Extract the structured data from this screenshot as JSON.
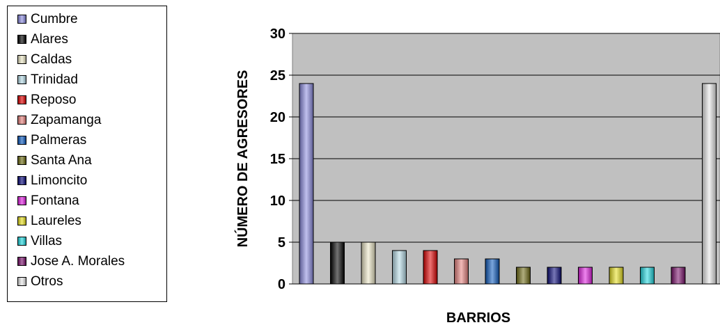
{
  "chart_data": {
    "type": "bar",
    "categories": [
      "Cumbre",
      "Alares",
      "Caldas",
      "Trinidad",
      "Reposo",
      "Zapamanga",
      "Palmeras",
      "Santa Ana",
      "Limoncito",
      "Fontana",
      "Laureles",
      "Villas",
      "Jose A. Morales",
      "Otros"
    ],
    "values": [
      24,
      5,
      5,
      4,
      4,
      3,
      3,
      2,
      2,
      2,
      2,
      2,
      2,
      24
    ],
    "colors": [
      "#8c8ce0",
      "#000000",
      "#ece7c6",
      "#b7dce8",
      "#e00000",
      "#e8837f",
      "#0e5bbf",
      "#6d6a12",
      "#08087a",
      "#e020e0",
      "#e8e020",
      "#20d8e0",
      "#7a0f6a",
      "#e8e8e8"
    ],
    "xlabel": "BARRIOS",
    "ylabel": "NÚMERO DE AGRESORES",
    "ylim": [
      0,
      30
    ],
    "yticks": [
      0,
      5,
      10,
      15,
      20,
      25,
      30
    ],
    "grid": true,
    "legend_position": "left"
  }
}
